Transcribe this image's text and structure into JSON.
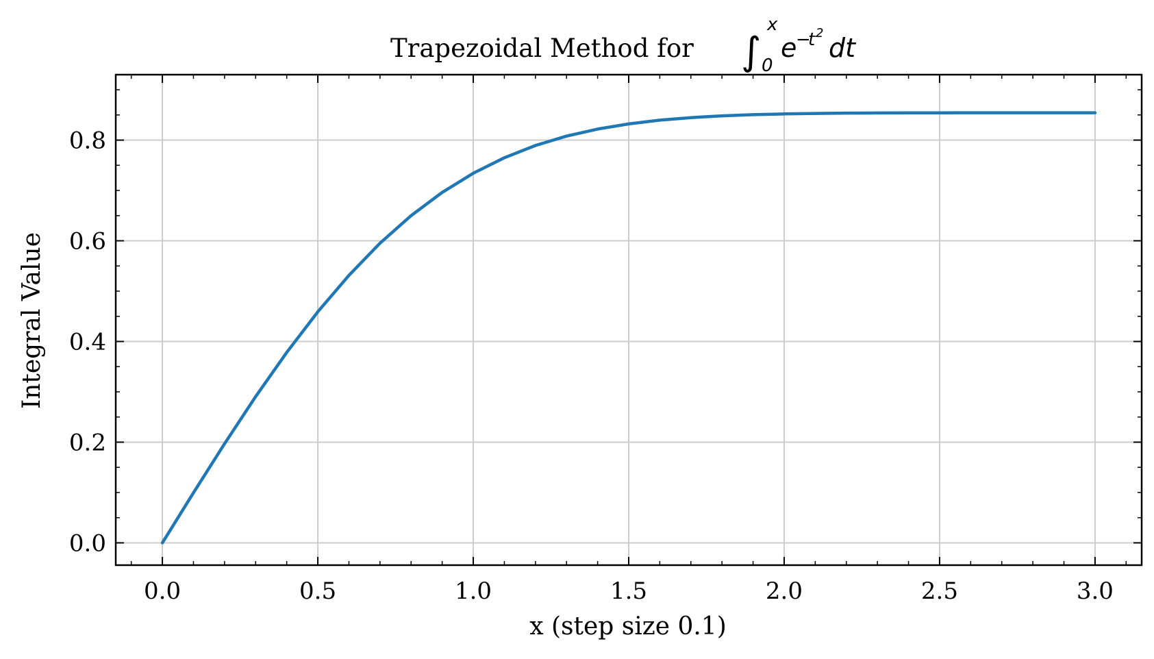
{
  "chart_data": {
    "type": "line",
    "title": {
      "prefix": "Trapezoidal Method for ",
      "integral_sign": "∫",
      "upper_limit": "x",
      "lower_limit": "0",
      "integrand_base": "e",
      "integrand_exponent_minus": "−",
      "integrand_exponent_var": "t",
      "integrand_exponent_power": "2",
      "differential": "dt"
    },
    "xlabel": "x (step size 0.1)",
    "ylabel": "Integral Value",
    "xlim": [
      -0.15,
      3.15
    ],
    "ylim": [
      -0.0443,
      0.93
    ],
    "xticks": [
      0.0,
      0.5,
      1.0,
      1.5,
      2.0,
      2.5,
      3.0
    ],
    "xtick_labels": [
      "0.0",
      "0.5",
      "1.0",
      "1.5",
      "2.0",
      "2.5",
      "3.0"
    ],
    "yticks": [
      0.0,
      0.2,
      0.4,
      0.6,
      0.8
    ],
    "ytick_labels": [
      "0.0",
      "0.2",
      "0.4",
      "0.6",
      "0.8"
    ],
    "grid": true,
    "series": [
      {
        "color": "#1f77b4",
        "x": [
          0.0,
          0.1,
          0.2,
          0.3,
          0.4,
          0.5,
          0.6,
          0.7,
          0.8,
          0.9,
          1.0,
          1.1,
          1.2,
          1.3,
          1.4,
          1.5,
          1.6,
          1.7,
          1.8,
          1.9,
          2.0,
          2.1,
          2.2,
          2.3,
          2.4,
          2.5,
          2.6,
          2.7,
          2.8,
          2.9,
          3.0
        ],
        "y": [
          0.0,
          0.0995,
          0.197,
          0.2906,
          0.3784,
          0.459,
          0.5314,
          0.5951,
          0.6499,
          0.6961,
          0.7342,
          0.765,
          0.7893,
          0.8079,
          0.8219,
          0.8322,
          0.8396,
          0.8447,
          0.8482,
          0.8505,
          0.852,
          0.853,
          0.8536,
          0.8539,
          0.8541,
          0.8542,
          0.8543,
          0.8543,
          0.8543,
          0.8543,
          0.8543
        ]
      }
    ]
  }
}
